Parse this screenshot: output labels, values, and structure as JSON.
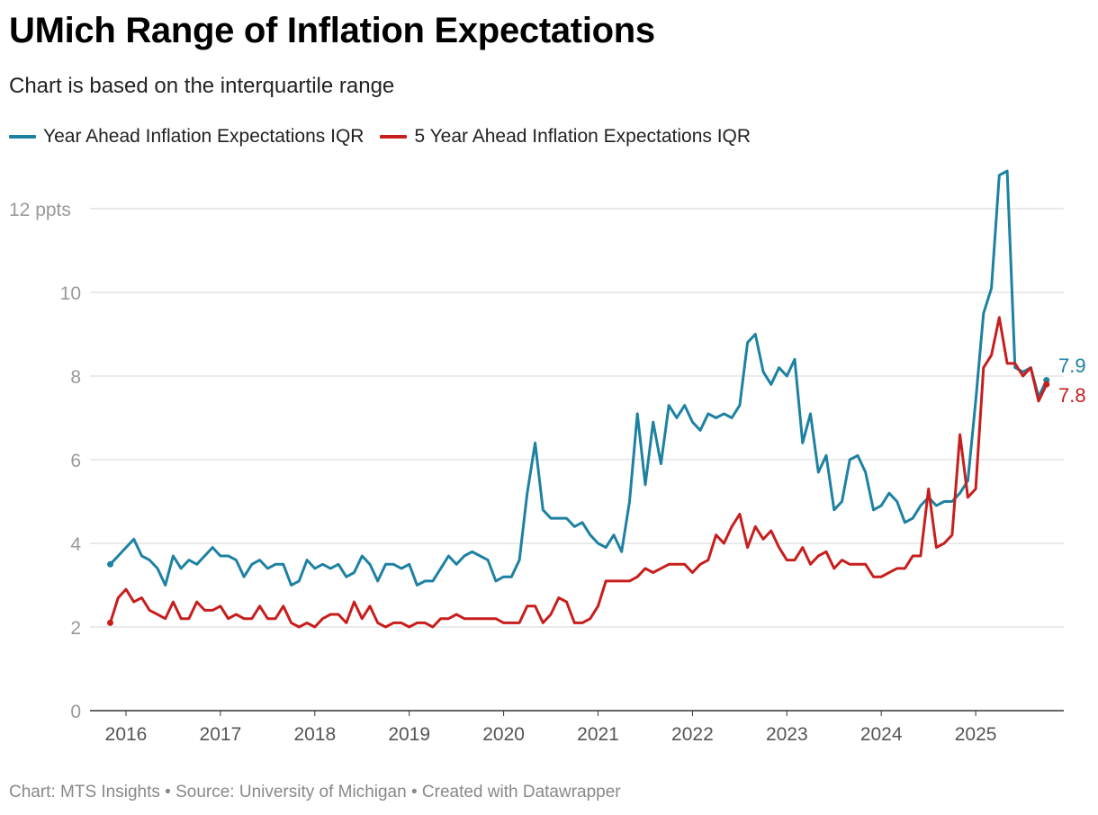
{
  "chart_data": {
    "type": "line",
    "title": "UMich Range of Inflation Expectations",
    "subtitle": "Chart is based on the interquartile range",
    "y_unit_label": "ppts",
    "ylim": [
      0,
      12
    ],
    "y_ticks": [
      "0",
      "2",
      "4",
      "6",
      "8",
      "10",
      "12 ppts"
    ],
    "y_tick_values": [
      0,
      2,
      4,
      6,
      8,
      10,
      12
    ],
    "x_ticks": [
      "2016",
      "2017",
      "2018",
      "2019",
      "2020",
      "2021",
      "2022",
      "2023",
      "2024",
      "2025"
    ],
    "grid": true,
    "legend_position": "top-left",
    "x": [
      "2015-11",
      "2015-12",
      "2016-01",
      "2016-02",
      "2016-03",
      "2016-04",
      "2016-05",
      "2016-06",
      "2016-07",
      "2016-08",
      "2016-09",
      "2016-10",
      "2016-11",
      "2016-12",
      "2017-01",
      "2017-02",
      "2017-03",
      "2017-04",
      "2017-05",
      "2017-06",
      "2017-07",
      "2017-08",
      "2017-09",
      "2017-10",
      "2017-11",
      "2017-12",
      "2018-01",
      "2018-02",
      "2018-03",
      "2018-04",
      "2018-05",
      "2018-06",
      "2018-07",
      "2018-08",
      "2018-09",
      "2018-10",
      "2018-11",
      "2018-12",
      "2019-01",
      "2019-02",
      "2019-03",
      "2019-04",
      "2019-05",
      "2019-06",
      "2019-07",
      "2019-08",
      "2019-09",
      "2019-10",
      "2019-11",
      "2019-12",
      "2020-01",
      "2020-02",
      "2020-03",
      "2020-04",
      "2020-05",
      "2020-06",
      "2020-07",
      "2020-08",
      "2020-09",
      "2020-10",
      "2020-11",
      "2020-12",
      "2021-01",
      "2021-02",
      "2021-03",
      "2021-04",
      "2021-05",
      "2021-06",
      "2021-07",
      "2021-08",
      "2021-09",
      "2021-10",
      "2021-11",
      "2021-12",
      "2022-01",
      "2022-02",
      "2022-03",
      "2022-04",
      "2022-05",
      "2022-06",
      "2022-07",
      "2022-08",
      "2022-09",
      "2022-10",
      "2022-11",
      "2022-12",
      "2023-01",
      "2023-02",
      "2023-03",
      "2023-04",
      "2023-05",
      "2023-06",
      "2023-07",
      "2023-08",
      "2023-09",
      "2023-10",
      "2023-11",
      "2023-12",
      "2024-01",
      "2024-02",
      "2024-03",
      "2024-04",
      "2024-05",
      "2024-06",
      "2024-07",
      "2024-08",
      "2024-09",
      "2024-10",
      "2024-11",
      "2024-12",
      "2025-01",
      "2025-02",
      "2025-03",
      "2025-04",
      "2025-05",
      "2025-06",
      "2025-07",
      "2025-08",
      "2025-09",
      "2025-10"
    ],
    "series": [
      {
        "name": "Year Ahead Inflation Expectations IQR",
        "color": "#1d81a2",
        "end_label": "7.9",
        "values": [
          3.5,
          3.7,
          3.9,
          4.1,
          3.7,
          3.6,
          3.4,
          3.0,
          3.7,
          3.4,
          3.6,
          3.5,
          3.7,
          3.9,
          3.7,
          3.7,
          3.6,
          3.2,
          3.5,
          3.6,
          3.4,
          3.5,
          3.5,
          3.0,
          3.1,
          3.6,
          3.4,
          3.5,
          3.4,
          3.5,
          3.2,
          3.3,
          3.7,
          3.5,
          3.1,
          3.5,
          3.5,
          3.4,
          3.5,
          3.0,
          3.1,
          3.1,
          3.4,
          3.7,
          3.5,
          3.7,
          3.8,
          3.7,
          3.6,
          3.1,
          3.2,
          3.2,
          3.6,
          5.2,
          6.4,
          4.8,
          4.6,
          4.6,
          4.6,
          4.4,
          4.5,
          4.2,
          4.0,
          3.9,
          4.2,
          3.8,
          5.0,
          7.1,
          5.4,
          6.9,
          5.9,
          7.3,
          7.0,
          7.3,
          6.9,
          6.7,
          7.1,
          7.0,
          7.1,
          7.0,
          7.3,
          8.8,
          9.0,
          8.1,
          7.8,
          8.2,
          8.0,
          8.4,
          6.4,
          7.1,
          5.7,
          6.1,
          4.8,
          5.0,
          6.0,
          6.1,
          5.7,
          4.8,
          4.9,
          5.2,
          5.0,
          4.5,
          4.6,
          4.9,
          5.1,
          4.9,
          5.0,
          5.0,
          5.2,
          5.5,
          7.4,
          9.5,
          10.1,
          12.8,
          12.9,
          8.2,
          8.1,
          8.2,
          7.5,
          7.9
        ]
      },
      {
        "name": "5 Year Ahead Inflation Expectations IQR",
        "color": "#c71e1d",
        "end_label": "7.8",
        "values": [
          2.1,
          2.7,
          2.9,
          2.6,
          2.7,
          2.4,
          2.3,
          2.2,
          2.6,
          2.2,
          2.2,
          2.6,
          2.4,
          2.4,
          2.5,
          2.2,
          2.3,
          2.2,
          2.2,
          2.5,
          2.2,
          2.2,
          2.5,
          2.1,
          2.0,
          2.1,
          2.0,
          2.2,
          2.3,
          2.3,
          2.1,
          2.6,
          2.2,
          2.5,
          2.1,
          2.0,
          2.1,
          2.1,
          2.0,
          2.1,
          2.1,
          2.0,
          2.2,
          2.2,
          2.3,
          2.2,
          2.2,
          2.2,
          2.2,
          2.2,
          2.1,
          2.1,
          2.1,
          2.5,
          2.5,
          2.1,
          2.3,
          2.7,
          2.6,
          2.1,
          2.1,
          2.2,
          2.5,
          3.1,
          3.1,
          3.1,
          3.1,
          3.2,
          3.4,
          3.3,
          3.4,
          3.5,
          3.5,
          3.5,
          3.3,
          3.5,
          3.6,
          4.2,
          4.0,
          4.4,
          4.7,
          3.9,
          4.4,
          4.1,
          4.3,
          3.9,
          3.6,
          3.6,
          3.9,
          3.5,
          3.7,
          3.8,
          3.4,
          3.6,
          3.5,
          3.5,
          3.5,
          3.2,
          3.2,
          3.3,
          3.4,
          3.4,
          3.7,
          3.7,
          5.3,
          3.9,
          4.0,
          4.2,
          6.6,
          5.1,
          5.3,
          8.2,
          8.5,
          9.4,
          8.3,
          8.3,
          8.0,
          8.2,
          7.4,
          7.8
        ]
      }
    ]
  },
  "footer": "Chart: MTS Insights • Source: University of Michigan • Created with Datawrapper"
}
